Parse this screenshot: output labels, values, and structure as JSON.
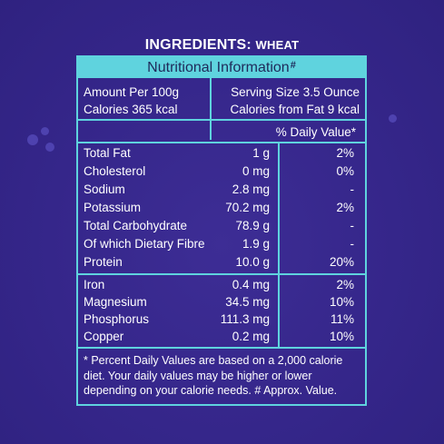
{
  "title": {
    "main": "INGREDIENTS:",
    "sub": "WHEAT"
  },
  "header": {
    "label": "Nutritional Information",
    "mark": "#"
  },
  "summary": {
    "amount": "Amount Per 100g",
    "calories": "Calories 365 kcal",
    "serving": "Serving Size 3.5 Ounce",
    "calories_fat": "Calories from Fat 9 kcal"
  },
  "dv_heading": "% Daily Value*",
  "macros": [
    {
      "name": "Total Fat",
      "amount": "1 g",
      "dv": "2%"
    },
    {
      "name": "Cholesterol",
      "amount": "0 mg",
      "dv": "0%"
    },
    {
      "name": "Sodium",
      "amount": "2.8 mg",
      "dv": "-"
    },
    {
      "name": "Potassium",
      "amount": "70.2 mg",
      "dv": "2%"
    },
    {
      "name": "Total Carbohydrate",
      "amount": "78.9 g",
      "dv": "-"
    },
    {
      "name": "Of which Dietary Fibre",
      "amount": "1.9 g",
      "dv": "-"
    },
    {
      "name": "Protein",
      "amount": "10.0 g",
      "dv": "20%"
    }
  ],
  "minerals": [
    {
      "name": "Iron",
      "amount": "0.4 mg",
      "dv": "2%"
    },
    {
      "name": "Magnesium",
      "amount": "34.5 mg",
      "dv": "10%"
    },
    {
      "name": "Phosphorus",
      "amount": "111.3 mg",
      "dv": "11%"
    },
    {
      "name": "Copper",
      "amount": "0.2 mg",
      "dv": "10%"
    }
  ],
  "footnote": "* Percent Daily Values are based on a 2,000 calorie diet. Your daily values may be higher or lower depending on your calorie needs. # Approx. Value.",
  "colors": {
    "background": "#3a2a8c",
    "accent": "#5fd3de",
    "header_text": "#1f2a5a"
  }
}
